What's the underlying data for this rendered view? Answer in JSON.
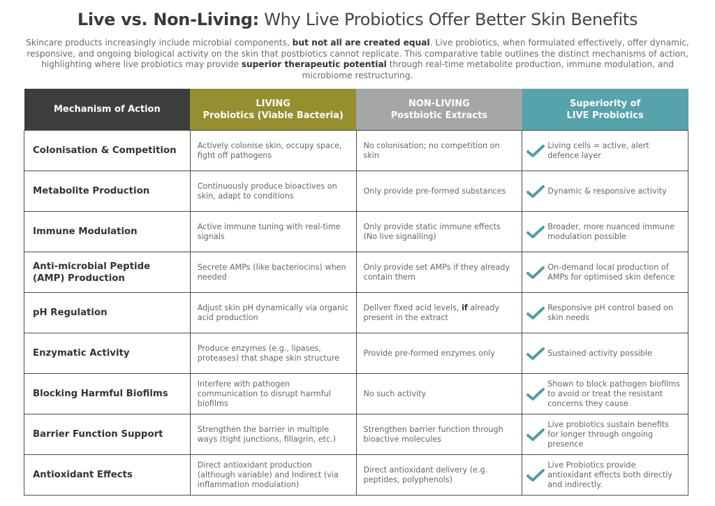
{
  "title": {
    "bold": "Live vs. Non-Living:",
    "rest": " Why Live Probiotics Offer Better Skin Benefits"
  },
  "intro": [
    {
      "text": "Skincare products increasingly include microbial components, ",
      "bold": false
    },
    {
      "text": "but not all are created equal",
      "bold": true
    },
    {
      "text": ". Live probiotics, when formulated effectively, offer dynamic, responsive, and ongoing biological activity on the skin that postbiotics cannot replicate. This comparative table outlines the distinct mechanisms of action, highlighting where live probiotics may provide ",
      "bold": false
    },
    {
      "text": "superior therapeutic potential",
      "bold": true
    },
    {
      "text": " through real-time metabolite production, immune modulation, and microbiome restructuring.",
      "bold": false
    }
  ],
  "colors": {
    "mechanism": "#3d3d3d",
    "living": "#958f30",
    "nonliving": "#a5a6a8",
    "superiority": "#56a3ac",
    "check": "#4e9ea6"
  },
  "headers": [
    [
      "Mechanism of Action"
    ],
    [
      "LIVING",
      "Probiotics (Viable Bacteria)"
    ],
    [
      "NON-LIVING",
      "Postbiotic Extracts"
    ],
    [
      "Superiority of",
      "LIVE Probiotics"
    ]
  ],
  "check_icon": "checkmark-icon",
  "rows": [
    {
      "mechanism": "Colonisation & Competition",
      "living": "Actively colonise skin, occupy space, fight off pathogens",
      "nonliving": [
        {
          "text": "No colonisation; no competition on skin"
        }
      ],
      "superiority": "Living cells = active, alert defence layer"
    },
    {
      "mechanism": "Metabolite Production",
      "living": "Continuously produce bioactives on skin, adapt to conditions",
      "nonliving": [
        {
          "text": "Only provide pre-formed substances"
        }
      ],
      "superiority": "Dynamic & responsive activity"
    },
    {
      "mechanism": "Immune Modulation",
      "living": "Active immune tuning with real-time signals",
      "nonliving": [
        {
          "text": "Only provide static immune effects (No live signalling)"
        }
      ],
      "superiority": "Broader, more nuanced immune modulation possible"
    },
    {
      "mechanism": "Anti-microbial Peptide (AMP) Production",
      "living": "Secrete AMPs (like bacteriocins) when needed",
      "nonliving": [
        {
          "text": "Only provide set AMPs if they already contain them"
        }
      ],
      "superiority": "On-demand local production of AMPs for optimised skin defence"
    },
    {
      "mechanism": "pH Regulation",
      "living": "Adjust skin pH dynamically via organic acid production",
      "nonliving": [
        {
          "text": "Deliver fixed acid levels, "
        },
        {
          "text": "if",
          "bold": true
        },
        {
          "text": " already present in the extract"
        }
      ],
      "superiority": "Responsive pH control based on skin needs"
    },
    {
      "mechanism": "Enzymatic Activity",
      "living": "Produce enzymes (e.g., lipases, proteases) that shape skin structure",
      "nonliving": [
        {
          "text": "Provide pre-formed enzymes only"
        }
      ],
      "superiority": "Sustained activity possible"
    },
    {
      "mechanism": "Blocking Harmful Biofilms",
      "living": "Interfere with pathogen communication to disrupt harmful biofilms",
      "nonliving": [
        {
          "text": "No such activity"
        }
      ],
      "superiority": "Shown to block pathogen biofilms to avoid or treat the resistant concerns they cause"
    },
    {
      "mechanism": "Barrier Function Support",
      "living": "Strengthen the barrier in multiple ways (tight junctions, fillagrin, etc.)",
      "nonliving": [
        {
          "text": "Strengthen barrier function through bioactive molecules"
        }
      ],
      "superiority": "Live probiotics sustain benefits for longer through ongoing presence"
    },
    {
      "mechanism": "Antioxidant Effects",
      "living": "Direct antioxidant production (although variable) and Indirect (via inflammation modulation)",
      "nonliving": [
        {
          "text": "Direct antioxidant delivery (e.g. peptides, polyphenols)"
        }
      ],
      "superiority": "Live Probiotics provide antioxidant effects both directly and indirectly."
    }
  ]
}
